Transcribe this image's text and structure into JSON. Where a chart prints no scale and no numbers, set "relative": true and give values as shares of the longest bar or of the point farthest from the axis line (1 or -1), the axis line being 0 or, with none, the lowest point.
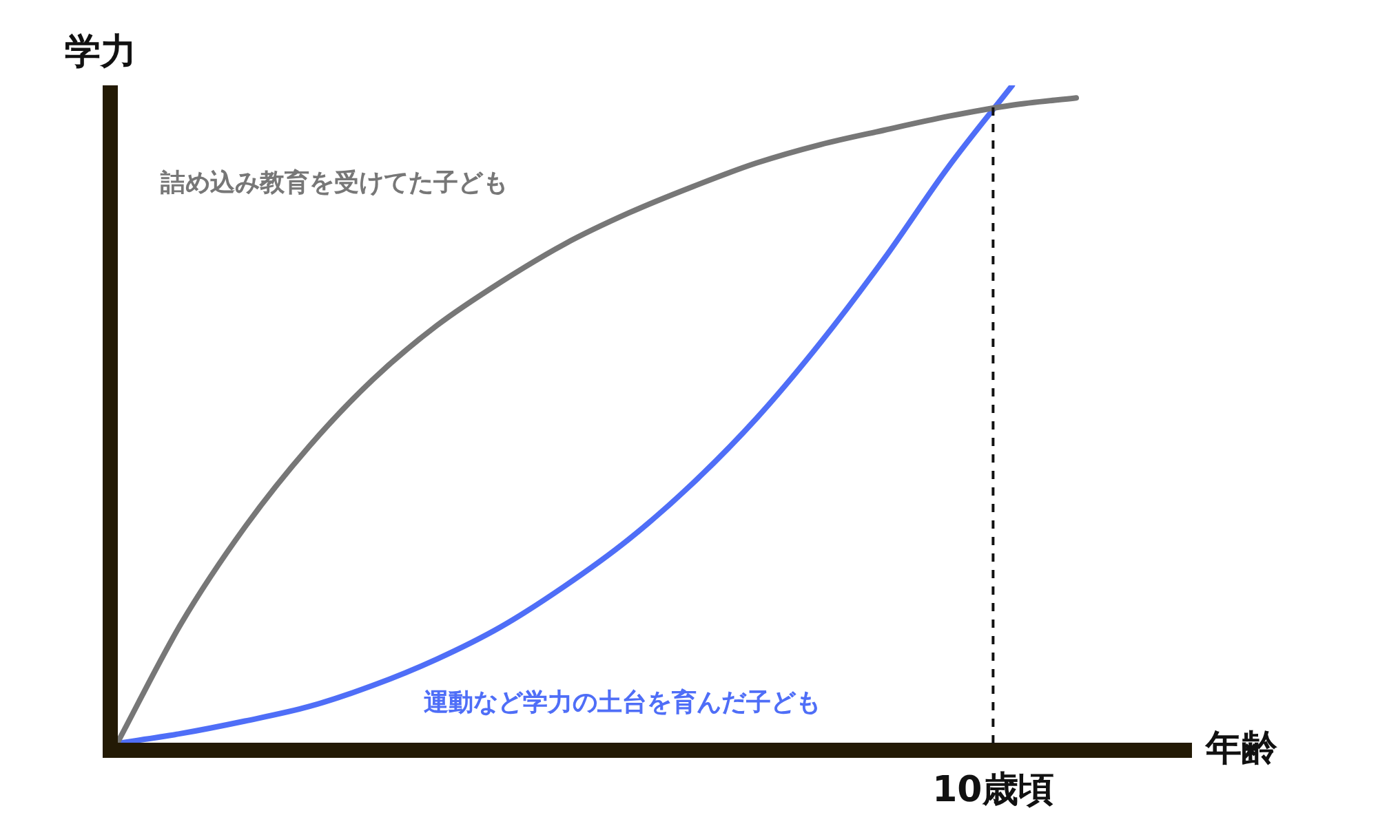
{
  "chart_data": {
    "type": "line",
    "relative": true,
    "xlabel": "年齢",
    "ylabel": "学力",
    "categories": [
      null,
      null,
      null,
      null,
      null,
      null,
      null,
      null,
      null,
      null,
      null,
      null,
      null,
      null,
      null,
      null
    ],
    "annotations": [
      "10歳頃"
    ],
    "grid": false,
    "legend": false,
    "marker": "none",
    "line_style": "solid",
    "series": [
      {
        "name": "詰め込み教育を受けてた子ども",
        "color": "#777777",
        "values": [
          0,
          0.182,
          0.329,
          0.451,
          0.553,
          0.635,
          0.701,
          0.759,
          0.806,
          0.846,
          0.882,
          0.91,
          0.932,
          0.953,
          0.97,
          0.981
        ]
      },
      {
        "name": "運動など学力の土台を育んだ子ども",
        "color": "#4f6ef7",
        "values": [
          0,
          0.015,
          0.034,
          0.056,
          0.088,
          0.128,
          0.177,
          0.239,
          0.31,
          0.395,
          0.494,
          0.609,
          0.737,
          0.876,
          1.0,
          null
        ]
      }
    ]
  }
}
